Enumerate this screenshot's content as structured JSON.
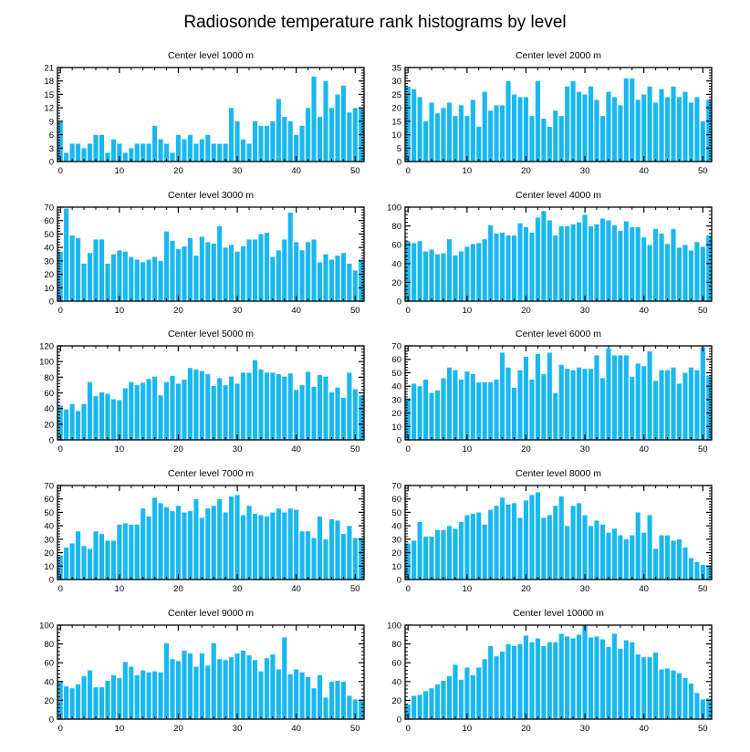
{
  "figure": {
    "title": "Radiosonde temperature rank histograms by level",
    "bar_color": "#1ab8f0",
    "bar_edge_color": "#ffffff"
  },
  "chart_data": [
    {
      "type": "bar",
      "title": "Center level 1000 m",
      "x": [
        0,
        1,
        2,
        3,
        4,
        5,
        6,
        7,
        8,
        9,
        10,
        11,
        12,
        13,
        14,
        15,
        16,
        17,
        18,
        19,
        20,
        21,
        22,
        23,
        24,
        25,
        26,
        27,
        28,
        29,
        30,
        31,
        32,
        33,
        34,
        35,
        36,
        37,
        38,
        39,
        40,
        41,
        42,
        43,
        44,
        45,
        46,
        47,
        48,
        49,
        50,
        51
      ],
      "values": [
        9,
        2,
        4,
        4,
        3,
        4,
        6,
        6,
        2,
        5,
        4,
        2,
        3,
        4,
        4,
        4,
        8,
        5,
        4,
        2,
        6,
        5,
        6,
        4,
        5,
        6,
        4,
        4,
        4,
        12,
        9,
        5,
        4,
        9,
        8,
        8,
        9,
        14,
        10,
        9,
        6,
        8,
        12,
        19,
        10,
        18,
        12,
        15,
        17,
        11,
        12,
        12
      ],
      "xlim": [
        -0.5,
        51.5
      ],
      "ylim": [
        0,
        21
      ],
      "xticks": [
        0,
        10,
        20,
        30,
        40,
        50
      ],
      "yticks": [
        0,
        3,
        6,
        9,
        12,
        15,
        18,
        21
      ],
      "xlabel": "",
      "ylabel": ""
    },
    {
      "type": "bar",
      "title": "Center level 2000 m",
      "x": [
        0,
        1,
        2,
        3,
        4,
        5,
        6,
        7,
        8,
        9,
        10,
        11,
        12,
        13,
        14,
        15,
        16,
        17,
        18,
        19,
        20,
        21,
        22,
        23,
        24,
        25,
        26,
        27,
        28,
        29,
        30,
        31,
        32,
        33,
        34,
        35,
        36,
        37,
        38,
        39,
        40,
        41,
        42,
        43,
        44,
        45,
        46,
        47,
        48,
        49,
        50,
        51
      ],
      "values": [
        28,
        27,
        24,
        15,
        22,
        18,
        20,
        22,
        17,
        21,
        17,
        23,
        13,
        26,
        19,
        21,
        21,
        30,
        25,
        24,
        24,
        17,
        30,
        16,
        13,
        19,
        17,
        28,
        30,
        26,
        25,
        28,
        23,
        17,
        26,
        24,
        21,
        31,
        31,
        23,
        25,
        28,
        22,
        27,
        24,
        28,
        24,
        26,
        22,
        24,
        15,
        23
      ],
      "xlim": [
        -0.5,
        51.5
      ],
      "ylim": [
        0,
        35
      ],
      "xticks": [
        0,
        10,
        20,
        30,
        40,
        50
      ],
      "yticks": [
        0,
        5,
        10,
        15,
        20,
        25,
        30,
        35
      ],
      "xlabel": "",
      "ylabel": ""
    },
    {
      "type": "bar",
      "title": "Center level 3000 m",
      "x": [
        0,
        1,
        2,
        3,
        4,
        5,
        6,
        7,
        8,
        9,
        10,
        11,
        12,
        13,
        14,
        15,
        16,
        17,
        18,
        19,
        20,
        21,
        22,
        23,
        24,
        25,
        26,
        27,
        28,
        29,
        30,
        31,
        32,
        33,
        34,
        35,
        36,
        37,
        38,
        39,
        40,
        41,
        42,
        43,
        44,
        45,
        46,
        47,
        48,
        49,
        50,
        51
      ],
      "values": [
        37,
        69,
        49,
        47,
        28,
        36,
        46,
        46,
        28,
        35,
        38,
        37,
        33,
        31,
        29,
        31,
        33,
        30,
        52,
        45,
        39,
        41,
        47,
        34,
        48,
        44,
        43,
        56,
        40,
        42,
        37,
        41,
        46,
        46,
        50,
        51,
        33,
        38,
        46,
        66,
        44,
        38,
        44,
        46,
        29,
        35,
        31,
        34,
        36,
        28,
        23,
        31
      ],
      "xlim": [
        -0.5,
        51.5
      ],
      "ylim": [
        0,
        70
      ],
      "xticks": [
        0,
        10,
        20,
        30,
        40,
        50
      ],
      "yticks": [
        0,
        10,
        20,
        30,
        40,
        50,
        60,
        70
      ],
      "xlabel": "",
      "ylabel": ""
    },
    {
      "type": "bar",
      "title": "Center level 4000 m",
      "x": [
        0,
        1,
        2,
        3,
        4,
        5,
        6,
        7,
        8,
        9,
        10,
        11,
        12,
        13,
        14,
        15,
        16,
        17,
        18,
        19,
        20,
        21,
        22,
        23,
        24,
        25,
        26,
        27,
        28,
        29,
        30,
        31,
        32,
        33,
        34,
        35,
        36,
        37,
        38,
        39,
        40,
        41,
        42,
        43,
        44,
        45,
        46,
        47,
        48,
        49,
        50,
        51
      ],
      "values": [
        64,
        62,
        64,
        53,
        55,
        50,
        51,
        66,
        49,
        53,
        58,
        61,
        62,
        66,
        81,
        72,
        73,
        70,
        70,
        83,
        79,
        73,
        89,
        96,
        86,
        70,
        80,
        80,
        82,
        84,
        92,
        80,
        82,
        88,
        86,
        81,
        75,
        85,
        79,
        79,
        68,
        60,
        77,
        72,
        61,
        77,
        57,
        60,
        54,
        63,
        58,
        70
      ],
      "xlim": [
        -0.5,
        51.5
      ],
      "ylim": [
        0,
        100
      ],
      "xticks": [
        0,
        10,
        20,
        30,
        40,
        50
      ],
      "yticks": [
        0,
        20,
        40,
        60,
        80,
        100
      ],
      "xlabel": "",
      "ylabel": ""
    },
    {
      "type": "bar",
      "title": "Center level 5000 m",
      "x": [
        0,
        1,
        2,
        3,
        4,
        5,
        6,
        7,
        8,
        9,
        10,
        11,
        12,
        13,
        14,
        15,
        16,
        17,
        18,
        19,
        20,
        21,
        22,
        23,
        24,
        25,
        26,
        27,
        28,
        29,
        30,
        31,
        32,
        33,
        34,
        35,
        36,
        37,
        38,
        39,
        40,
        41,
        42,
        43,
        44,
        45,
        46,
        47,
        48,
        49,
        50,
        51
      ],
      "values": [
        44,
        39,
        46,
        37,
        46,
        74,
        56,
        61,
        59,
        52,
        51,
        66,
        74,
        70,
        73,
        78,
        81,
        57,
        74,
        82,
        72,
        77,
        92,
        90,
        88,
        84,
        69,
        79,
        70,
        81,
        72,
        86,
        86,
        102,
        90,
        86,
        86,
        84,
        81,
        85,
        64,
        70,
        87,
        68,
        83,
        81,
        61,
        67,
        54,
        86,
        65,
        57
      ],
      "xlim": [
        -0.5,
        51.5
      ],
      "ylim": [
        0,
        120
      ],
      "xticks": [
        0,
        10,
        20,
        30,
        40,
        50
      ],
      "yticks": [
        0,
        20,
        40,
        60,
        80,
        100,
        120
      ],
      "xlabel": "",
      "ylabel": ""
    },
    {
      "type": "bar",
      "title": "Center level 6000 m",
      "x": [
        0,
        1,
        2,
        3,
        4,
        5,
        6,
        7,
        8,
        9,
        10,
        11,
        12,
        13,
        14,
        15,
        16,
        17,
        18,
        19,
        20,
        21,
        22,
        23,
        24,
        25,
        26,
        27,
        28,
        29,
        30,
        31,
        32,
        33,
        34,
        35,
        36,
        37,
        38,
        39,
        40,
        41,
        42,
        43,
        44,
        45,
        46,
        47,
        48,
        49,
        50,
        51
      ],
      "values": [
        31,
        42,
        40,
        45,
        35,
        37,
        46,
        54,
        52,
        45,
        51,
        49,
        43,
        43,
        43,
        45,
        65,
        54,
        39,
        52,
        62,
        45,
        64,
        49,
        65,
        35,
        56,
        53,
        52,
        54,
        53,
        53,
        63,
        46,
        68,
        63,
        63,
        63,
        47,
        57,
        55,
        66,
        44,
        52,
        52,
        54,
        42,
        50,
        54,
        52,
        69,
        48
      ],
      "xlim": [
        -0.5,
        51.5
      ],
      "ylim": [
        0,
        70
      ],
      "xticks": [
        0,
        10,
        20,
        30,
        40,
        50
      ],
      "yticks": [
        0,
        10,
        20,
        30,
        40,
        50,
        60,
        70
      ],
      "xlabel": "",
      "ylabel": ""
    },
    {
      "type": "bar",
      "title": "Center level 7000 m",
      "x": [
        0,
        1,
        2,
        3,
        4,
        5,
        6,
        7,
        8,
        9,
        10,
        11,
        12,
        13,
        14,
        15,
        16,
        17,
        18,
        19,
        20,
        21,
        22,
        23,
        24,
        25,
        26,
        27,
        28,
        29,
        30,
        31,
        32,
        33,
        34,
        35,
        36,
        37,
        38,
        39,
        40,
        41,
        42,
        43,
        44,
        45,
        46,
        47,
        48,
        49,
        50,
        51
      ],
      "values": [
        18,
        24,
        27,
        36,
        25,
        23,
        36,
        34,
        29,
        29,
        41,
        42,
        41,
        41,
        53,
        47,
        61,
        57,
        54,
        51,
        55,
        50,
        51,
        60,
        46,
        53,
        55,
        60,
        50,
        62,
        63,
        48,
        55,
        49,
        48,
        47,
        50,
        53,
        50,
        53,
        52,
        36,
        36,
        31,
        47,
        30,
        45,
        44,
        34,
        40,
        31,
        31
      ],
      "xlim": [
        -0.5,
        51.5
      ],
      "ylim": [
        0,
        70
      ],
      "xticks": [
        0,
        10,
        20,
        30,
        40,
        50
      ],
      "yticks": [
        0,
        10,
        20,
        30,
        40,
        50,
        60,
        70
      ],
      "xlabel": "",
      "ylabel": ""
    },
    {
      "type": "bar",
      "title": "Center level 8000 m",
      "x": [
        0,
        1,
        2,
        3,
        4,
        5,
        6,
        7,
        8,
        9,
        10,
        11,
        12,
        13,
        14,
        15,
        16,
        17,
        18,
        19,
        20,
        21,
        22,
        23,
        24,
        25,
        26,
        27,
        28,
        29,
        30,
        31,
        32,
        33,
        34,
        35,
        36,
        37,
        38,
        39,
        40,
        41,
        42,
        43,
        44,
        45,
        46,
        47,
        48,
        49,
        50,
        51
      ],
      "values": [
        27,
        29,
        43,
        32,
        32,
        37,
        37,
        40,
        38,
        43,
        48,
        49,
        50,
        41,
        52,
        55,
        61,
        56,
        57,
        46,
        59,
        63,
        65,
        46,
        48,
        55,
        62,
        40,
        55,
        57,
        48,
        40,
        44,
        41,
        35,
        38,
        33,
        30,
        33,
        50,
        35,
        48,
        23,
        33,
        33,
        29,
        30,
        24,
        16,
        13,
        11,
        10
      ],
      "xlim": [
        -0.5,
        51.5
      ],
      "ylim": [
        0,
        70
      ],
      "xticks": [
        0,
        10,
        20,
        30,
        40,
        50
      ],
      "yticks": [
        0,
        10,
        20,
        30,
        40,
        50,
        60,
        70
      ],
      "xlabel": "",
      "ylabel": ""
    },
    {
      "type": "bar",
      "title": "Center level 9000 m",
      "x": [
        0,
        1,
        2,
        3,
        4,
        5,
        6,
        7,
        8,
        9,
        10,
        11,
        12,
        13,
        14,
        15,
        16,
        17,
        18,
        19,
        20,
        21,
        22,
        23,
        24,
        25,
        26,
        27,
        28,
        29,
        30,
        31,
        32,
        33,
        34,
        35,
        36,
        37,
        38,
        39,
        40,
        41,
        42,
        43,
        44,
        45,
        46,
        47,
        48,
        49,
        50,
        51
      ],
      "values": [
        41,
        35,
        33,
        37,
        46,
        52,
        34,
        34,
        41,
        47,
        44,
        61,
        56,
        47,
        52,
        50,
        51,
        50,
        81,
        64,
        62,
        73,
        70,
        56,
        70,
        57,
        81,
        64,
        63,
        66,
        70,
        73,
        68,
        63,
        51,
        65,
        69,
        53,
        87,
        48,
        53,
        50,
        45,
        33,
        47,
        23,
        40,
        41,
        40,
        25,
        21,
        21
      ],
      "xlim": [
        -0.5,
        51.5
      ],
      "ylim": [
        0,
        100
      ],
      "xticks": [
        0,
        10,
        20,
        30,
        40,
        50
      ],
      "yticks": [
        0,
        20,
        40,
        60,
        80,
        100
      ],
      "xlabel": "",
      "ylabel": ""
    },
    {
      "type": "bar",
      "title": "Center level 10000 m",
      "x": [
        0,
        1,
        2,
        3,
        4,
        5,
        6,
        7,
        8,
        9,
        10,
        11,
        12,
        13,
        14,
        15,
        16,
        17,
        18,
        19,
        20,
        21,
        22,
        23,
        24,
        25,
        26,
        27,
        28,
        29,
        30,
        31,
        32,
        33,
        34,
        35,
        36,
        37,
        38,
        39,
        40,
        41,
        42,
        43,
        44,
        45,
        46,
        47,
        48,
        49,
        50,
        51
      ],
      "values": [
        16,
        25,
        26,
        30,
        33,
        37,
        41,
        46,
        58,
        42,
        55,
        47,
        55,
        64,
        78,
        67,
        72,
        80,
        78,
        80,
        89,
        82,
        86,
        78,
        82,
        82,
        91,
        88,
        86,
        90,
        100,
        87,
        88,
        85,
        77,
        91,
        75,
        84,
        82,
        69,
        66,
        66,
        71,
        53,
        54,
        52,
        49,
        44,
        38,
        28,
        21,
        22
      ],
      "xlim": [
        -0.5,
        51.5
      ],
      "ylim": [
        0,
        100
      ],
      "xticks": [
        0,
        10,
        20,
        30,
        40,
        50
      ],
      "yticks": [
        0,
        20,
        40,
        60,
        80,
        100
      ],
      "xlabel": "",
      "ylabel": ""
    }
  ]
}
